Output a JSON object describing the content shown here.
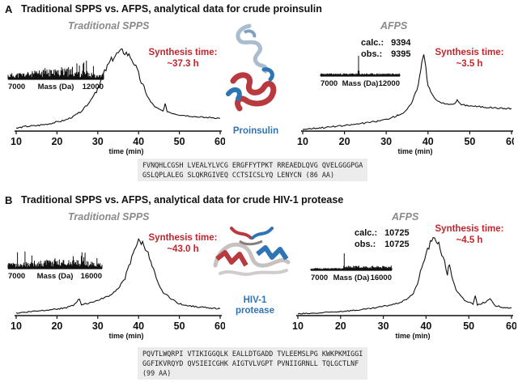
{
  "panel_a": {
    "letter": "A",
    "title": "Traditional SPPS vs. AFPS, analytical data for crude proinsulin",
    "left_method": "Traditional SPPS",
    "left_time_label": "Synthesis time:",
    "left_time_value": "~37.3 h",
    "right_method": "AFPS",
    "right_time_label": "Synthesis time:",
    "right_time_value": "~3.5 h",
    "calc_label": "calc.:",
    "calc_value": "9394",
    "obs_label": "obs.:",
    "obs_value": "9395",
    "protein_name": "Proinsulin",
    "sequence_line1": "FVNQHLCGSH LVEALYLVCG ERGFFYTPKT RREAEDLQVG QVELGGGPGA",
    "sequence_line2": "GSLQPLALEG SLQKRGIVEQ CCTSICSLYQ LENYCN (86 AA)"
  },
  "panel_b": {
    "letter": "B",
    "title": "Traditional SPPS vs. AFPS, analytical data for crude HIV-1 protease",
    "left_method": "Traditional SPPS",
    "left_time_label": "Synthesis time:",
    "left_time_value": "~43.0 h",
    "right_method": "AFPS",
    "right_time_label": "Synthesis time:",
    "right_time_value": "~4.5 h",
    "calc_label": "calc.:",
    "calc_value": "10725",
    "obs_label": "obs.:",
    "obs_value": "10725",
    "protein_name_line1": "HIV-1",
    "protein_name_line2": "protease",
    "sequence_line1": "PQVTLWQRPI VTIKIGGQLK EALLDTGADD TVLEEMSLPG KWKPKMIGGI",
    "sequence_line2": "GGFIKVRQYD QVSIEICGHK AIGTVLVGPT PVNIIGRNLL TQLGCTLNF",
    "sequence_line3": "(99 AA)"
  },
  "colors": {
    "accent_red": "#c0262d",
    "accent_blue": "#2f74b5",
    "method_gray": "#8a8a8a"
  },
  "chart_data": [
    {
      "id": "a-left",
      "type": "line",
      "title": "Traditional SPPS",
      "xlabel": "time (min)",
      "ylabel": "",
      "xlim": [
        10,
        60
      ],
      "ylim": [
        0,
        100
      ],
      "xticks": [
        "10",
        "20",
        "30",
        "40",
        "50",
        "60"
      ],
      "series": [
        {
          "name": "chromatogram",
          "x": [
            10,
            12,
            15,
            18,
            20,
            22,
            24,
            26,
            28,
            30,
            31,
            32,
            33,
            34,
            35,
            36,
            37,
            38,
            39,
            40,
            41,
            42,
            43,
            44,
            45,
            46,
            46.5,
            47,
            48,
            50,
            52,
            54,
            56,
            58,
            60
          ],
          "y": [
            3,
            5,
            6,
            8,
            10,
            12,
            16,
            22,
            32,
            48,
            58,
            68,
            76,
            82,
            86,
            88,
            86,
            82,
            74,
            62,
            50,
            40,
            32,
            27,
            24,
            22,
            30,
            22,
            20,
            18,
            17,
            16,
            15,
            15,
            14
          ]
        }
      ],
      "inset": {
        "type": "line",
        "xlabel": "Mass (Da)",
        "xlim": [
          7000,
          12000
        ],
        "xticks": [
          "7000",
          "12000"
        ],
        "peak_mass": null
      }
    },
    {
      "id": "a-right",
      "type": "line",
      "title": "AFPS",
      "xlabel": "time (min)",
      "ylabel": "",
      "xlim": [
        10,
        60
      ],
      "ylim": [
        0,
        100
      ],
      "xticks": [
        "10",
        "20",
        "30",
        "40",
        "50",
        "60"
      ],
      "series": [
        {
          "name": "chromatogram",
          "x": [
            10,
            15,
            20,
            25,
            28,
            30,
            32,
            34,
            35,
            36,
            37,
            38,
            38.5,
            39,
            39.5,
            40,
            41,
            42,
            44,
            46,
            47,
            48,
            50,
            52,
            55,
            58,
            60
          ],
          "y": [
            2,
            4,
            6,
            9,
            11,
            13,
            16,
            20,
            24,
            30,
            42,
            60,
            74,
            88,
            70,
            52,
            40,
            34,
            30,
            29,
            34,
            29,
            28,
            27,
            26,
            25,
            25
          ]
        }
      ],
      "inset": {
        "type": "line",
        "xlabel": "Mass (Da)",
        "xlim": [
          7000,
          12000
        ],
        "xticks": [
          "7000",
          "12000"
        ],
        "peak_mass": 9394
      }
    },
    {
      "id": "b-left",
      "type": "line",
      "title": "Traditional SPPS",
      "xlabel": "time (min)",
      "ylabel": "",
      "xlim": [
        10,
        60
      ],
      "ylim": [
        0,
        100
      ],
      "xticks": [
        "10",
        "20",
        "30",
        "40",
        "50",
        "60"
      ],
      "series": [
        {
          "name": "chromatogram",
          "x": [
            10,
            14,
            18,
            22,
            24,
            25.5,
            26,
            27,
            30,
            33,
            35,
            37,
            38,
            39,
            40,
            41,
            42,
            43,
            44,
            45,
            46,
            48,
            50,
            52,
            55,
            58,
            60
          ],
          "y": [
            3,
            5,
            7,
            9,
            12,
            20,
            13,
            14,
            18,
            24,
            32,
            48,
            62,
            80,
            88,
            86,
            78,
            62,
            48,
            36,
            28,
            20,
            14,
            12,
            10,
            9,
            8
          ]
        }
      ],
      "inset": {
        "type": "line",
        "xlabel": "Mass (Da)",
        "xlim": [
          7000,
          16000
        ],
        "xticks": [
          "7000",
          "16000"
        ],
        "peak_mass": null
      }
    },
    {
      "id": "b-right",
      "type": "line",
      "title": "AFPS",
      "xlabel": "time (min)",
      "ylabel": "",
      "xlim": [
        10,
        60
      ],
      "ylim": [
        0,
        100
      ],
      "xticks": [
        "10",
        "20",
        "30",
        "40",
        "50",
        "60"
      ],
      "series": [
        {
          "name": "chromatogram",
          "x": [
            10,
            15,
            20,
            25,
            28,
            30,
            33,
            35,
            37,
            38,
            39,
            40,
            41,
            42,
            43,
            44,
            45,
            45.5,
            46,
            47,
            49,
            51,
            51.5,
            52,
            54,
            55,
            56,
            58,
            60
          ],
          "y": [
            2,
            3,
            5,
            7,
            9,
            11,
            14,
            18,
            26,
            38,
            56,
            74,
            86,
            92,
            86,
            68,
            50,
            62,
            48,
            30,
            18,
            14,
            24,
            13,
            16,
            20,
            12,
            10,
            9
          ]
        }
      ],
      "inset": {
        "type": "line",
        "xlabel": "Mass (Da)",
        "xlim": [
          7000,
          16000
        ],
        "xticks": [
          "7000",
          "16000"
        ],
        "peak_mass": 10725
      }
    }
  ]
}
